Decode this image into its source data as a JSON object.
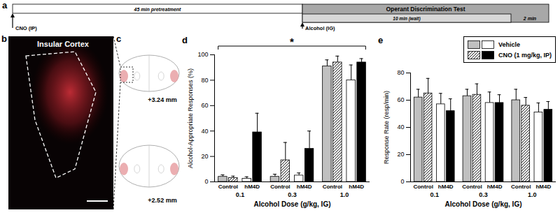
{
  "timeline": {
    "panel": "a",
    "pretreatment_event": "CNO (IP)",
    "pretreatment": "45 min pretreatment",
    "test_event": "Alcohol (IG)",
    "test": "Operant Discrimination Test",
    "wait": "10 min (wait)",
    "period": "2 min"
  },
  "histology_image": {
    "panel": "b",
    "label": "Insular Cortex"
  },
  "atlas": {
    "panel": "c",
    "sections": [
      "+3.24 mm",
      "+2.52 mm"
    ]
  },
  "chart_data": [
    {
      "panel": "d",
      "type": "bar",
      "ylabel": "Alcohol-Appropriate Responses (%)",
      "xlabel": "Alcohol Dose (g/kg, IG)",
      "categories": [
        "0.1",
        "0.3",
        "1.0"
      ],
      "ylim": [
        0,
        100
      ],
      "yticks": [
        0,
        20,
        40,
        60,
        80,
        100
      ],
      "annotations": [
        "*"
      ],
      "series": [
        {
          "group": "Control",
          "treatment": "Vehicle",
          "color": "#c0c0c0",
          "values": [
            4,
            4,
            91
          ],
          "errors": [
            1.5,
            2,
            5
          ]
        },
        {
          "group": "Control",
          "treatment": "CNO (1 mg/kg, IP)",
          "color": "#ffffff",
          "marker": "hatch",
          "values": [
            3,
            17,
            94
          ],
          "errors": [
            1.5,
            14,
            5
          ]
        },
        {
          "group": "hM4D",
          "treatment": "Vehicle",
          "color": "#ffffff",
          "values": [
            2.5,
            5,
            80
          ],
          "errors": [
            1.5,
            2,
            12
          ]
        },
        {
          "group": "hM4D",
          "treatment": "CNO (1 mg/kg, IP)",
          "color": "#000000",
          "values": [
            39,
            26,
            94
          ],
          "errors": [
            15,
            14,
            3
          ]
        }
      ]
    },
    {
      "panel": "e",
      "type": "bar",
      "ylabel": "Response Rate (resp/min)",
      "xlabel": "Alcohol Dose (g/kg, IG)",
      "categories": [
        "0.1",
        "0.3",
        "1.0"
      ],
      "ylim": [
        0,
        80
      ],
      "yticks": [
        0,
        20,
        40,
        60,
        80
      ],
      "legend": "top right",
      "series": [
        {
          "group": "Control",
          "treatment": "Vehicle",
          "color": "#c0c0c0",
          "values": [
            62,
            63,
            60
          ],
          "errors": [
            6,
            5,
            8
          ]
        },
        {
          "group": "Control",
          "treatment": "CNO (1 mg/kg, IP)",
          "color": "#ffffff",
          "marker": "hatch",
          "values": [
            65,
            64,
            56
          ],
          "errors": [
            11,
            8,
            6
          ]
        },
        {
          "group": "hM4D",
          "treatment": "Vehicle",
          "color": "#ffffff",
          "values": [
            57,
            58,
            51
          ],
          "errors": [
            8,
            8,
            7
          ]
        },
        {
          "group": "hM4D",
          "treatment": "CNO (1 mg/kg, IP)",
          "color": "#000000",
          "values": [
            52,
            58,
            53
          ],
          "errors": [
            9,
            6,
            6
          ]
        }
      ]
    }
  ]
}
